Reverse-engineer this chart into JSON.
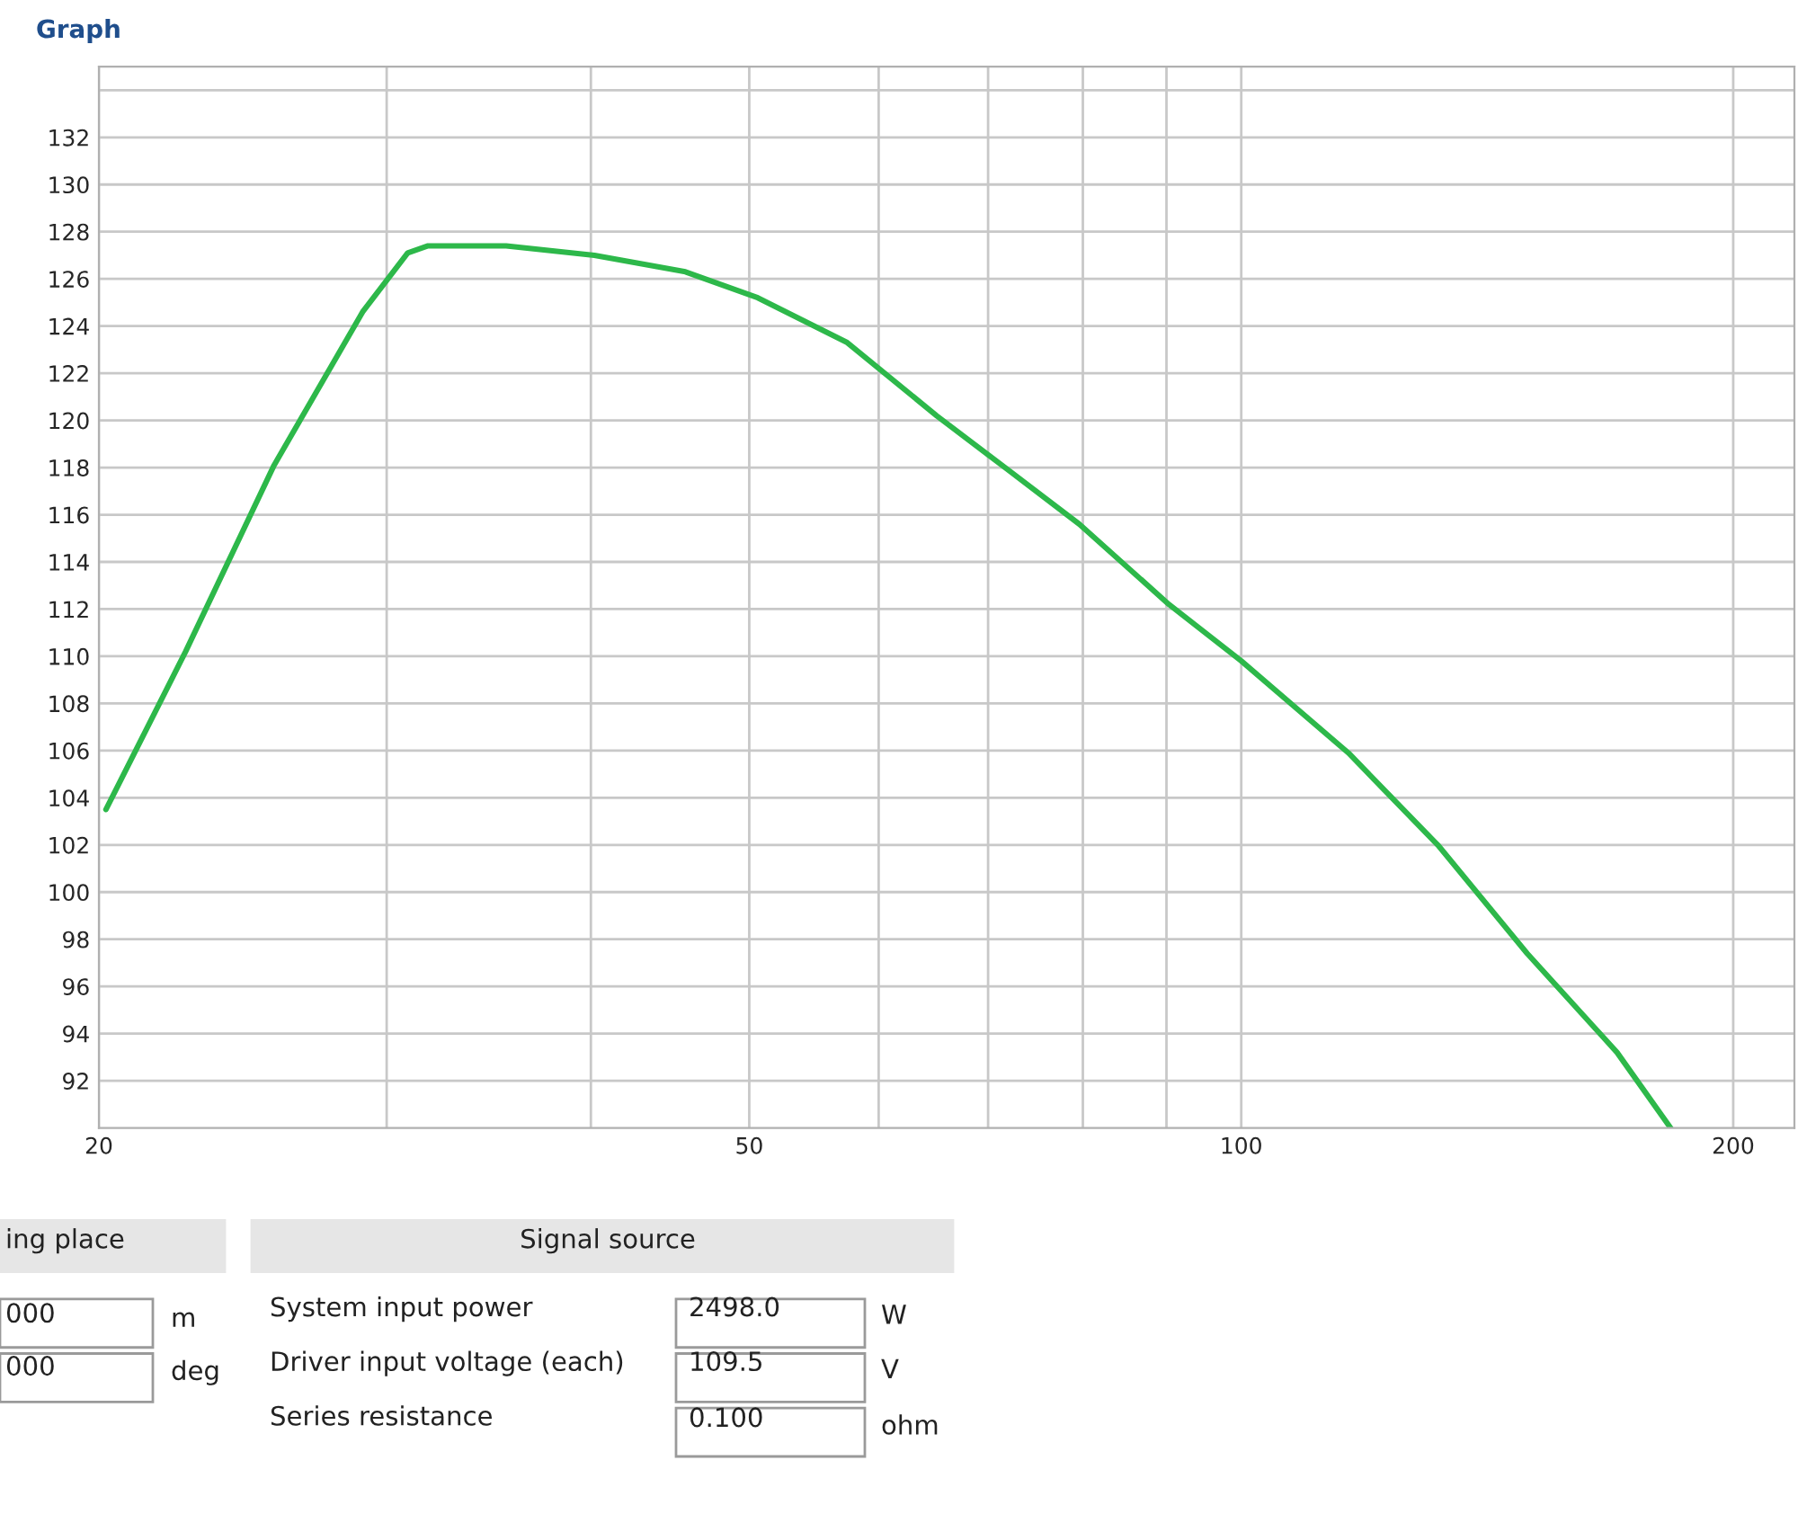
{
  "chart_data": {
    "type": "line",
    "title": "Graph",
    "x": [
      20.2,
      22.6,
      25.6,
      29.0,
      30.9,
      31.8,
      35.5,
      40.2,
      45.7,
      50.6,
      57.4,
      65.1,
      72.0,
      79.6,
      90.3,
      100,
      116.3,
      131.9,
      149.6,
      169.8,
      183.1
    ],
    "series": [
      {
        "color": "#2db84a",
        "values": [
          103.5,
          110.2,
          118.1,
          124.6,
          127.1,
          127.4,
          127.4,
          127.0,
          126.3,
          125.2,
          123.3,
          120.2,
          117.9,
          115.6,
          112.2,
          109.8,
          105.9,
          102.0,
          97.4,
          93.2,
          90.0
        ]
      }
    ],
    "log": "x",
    "xlim": [
      20,
      218
    ],
    "ylim": [
      90,
      135
    ],
    "xticks": [
      20,
      {
        "value": 30,
        "label": null
      },
      {
        "value": 40,
        "label": null
      },
      50,
      {
        "value": 60,
        "label": null
      },
      {
        "value": 70,
        "label": null
      },
      {
        "value": 80,
        "label": null
      },
      {
        "value": 90,
        "label": null
      },
      100,
      200
    ],
    "yticks": [
      92,
      94,
      96,
      98,
      100,
      102,
      104,
      106,
      108,
      110,
      112,
      114,
      116,
      118,
      120,
      122,
      124,
      126,
      128,
      130,
      132,
      {
        "value": 134,
        "label": null
      }
    ],
    "grid": true,
    "marker": "none",
    "line_style": "solid",
    "annotations": [
      "ing place",
      "000",
      "m",
      "000",
      "deg",
      "Signal source",
      "System input power",
      "2498.0",
      "W",
      "Driver input voltage (each)",
      "109.5",
      "V",
      "Series resistance",
      "0.100",
      "ohm"
    ]
  }
}
